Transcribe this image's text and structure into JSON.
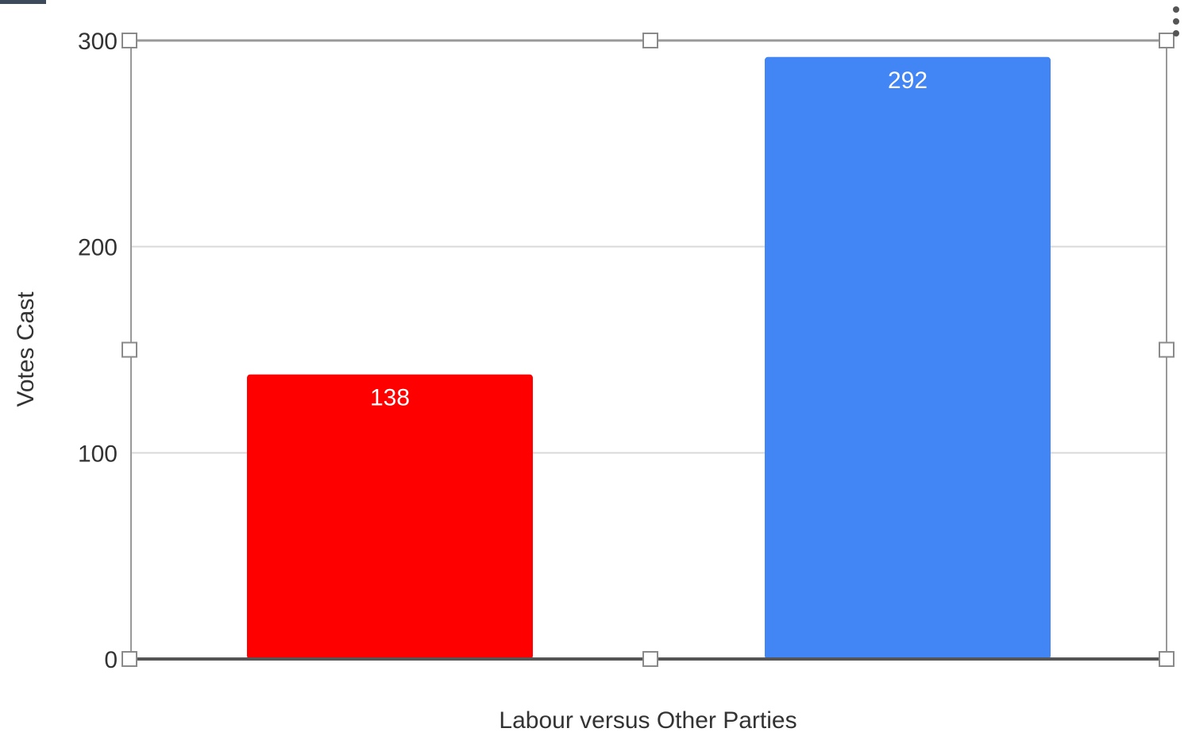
{
  "chart_data": {
    "type": "bar",
    "categories": [
      "",
      ""
    ],
    "values": [
      138,
      292
    ],
    "bar_colors": [
      "#ff0000",
      "#4285f4"
    ],
    "data_labels": [
      "138",
      "292"
    ],
    "title": "",
    "xlabel": "Labour versus Other Parties",
    "ylabel": "Votes Cast",
    "ylim": [
      0,
      300
    ],
    "yticks": [
      0,
      100,
      200,
      300
    ],
    "ytick_labels": [
      "0",
      "100",
      "200",
      "300"
    ],
    "grid": true,
    "legend": "none",
    "selected": true
  },
  "colors": {
    "gridline": "#d9d9d9",
    "axis": "#555555",
    "frame": "#999999",
    "label_text": "#333333",
    "data_label_text": "#ffffff",
    "handle_fill": "#ffffff",
    "handle_stroke": "#8a8a8a"
  },
  "icons": {
    "menu": "more-vert-icon"
  }
}
